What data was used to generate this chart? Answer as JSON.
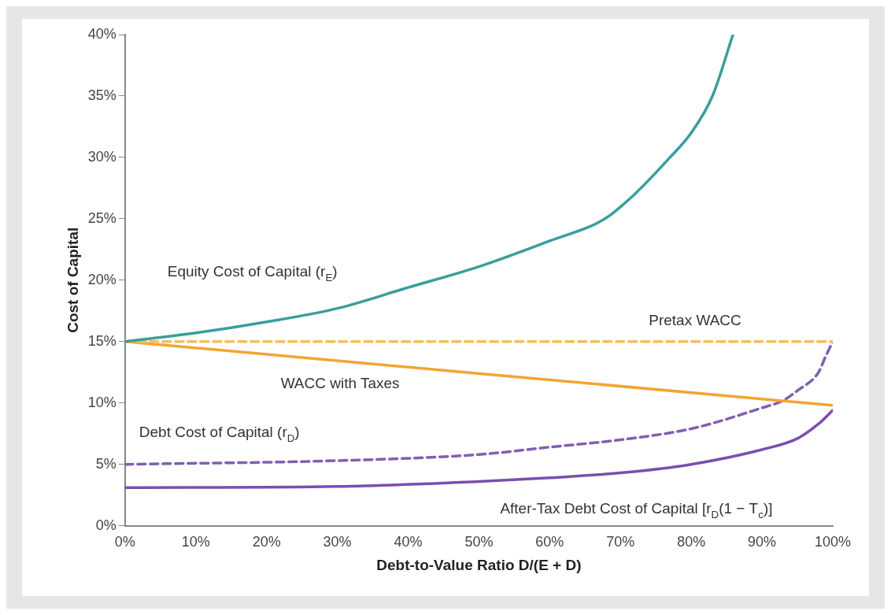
{
  "chart_data": {
    "type": "line",
    "xlabel": "Debt-to-Value Ratio D/(E + D)",
    "ylabel": "Cost of Capital",
    "xlim": [
      0,
      100
    ],
    "ylim": [
      0,
      40
    ],
    "xticks": [
      {
        "value": 0,
        "label": "0%"
      },
      {
        "value": 10,
        "label": "10%"
      },
      {
        "value": 20,
        "label": "20%"
      },
      {
        "value": 30,
        "label": "30%"
      },
      {
        "value": 40,
        "label": "40%"
      },
      {
        "value": 50,
        "label": "50%"
      },
      {
        "value": 60,
        "label": "60%"
      },
      {
        "value": 70,
        "label": "70%"
      },
      {
        "value": 80,
        "label": "80%"
      },
      {
        "value": 90,
        "label": "90%"
      },
      {
        "value": 100,
        "label": "100%"
      }
    ],
    "yticks": [
      {
        "value": 0,
        "label": "0%"
      },
      {
        "value": 5,
        "label": "5%"
      },
      {
        "value": 10,
        "label": "10%"
      },
      {
        "value": 15,
        "label": "15%"
      },
      {
        "value": 20,
        "label": "20%"
      },
      {
        "value": 25,
        "label": "25%"
      },
      {
        "value": 30,
        "label": "30%"
      },
      {
        "value": 35,
        "label": "35%"
      },
      {
        "value": 40,
        "label": "40%"
      }
    ],
    "grid": false,
    "legend": false,
    "marker": "none",
    "series": [
      {
        "name": "Equity Cost of Capital (r$_{E}$)",
        "color": "#3a9e9c",
        "line_style": "solid",
        "x": [
          0,
          10,
          20,
          30,
          40,
          50,
          60,
          67.8,
          72,
          77,
          80,
          83,
          85.9
        ],
        "values": [
          15,
          15.7,
          16.6,
          17.7,
          19.4,
          21.1,
          23.2,
          25,
          27,
          30,
          32,
          35,
          40
        ]
      },
      {
        "name": "Pretax WACC",
        "color": "#f5bd5c",
        "line_style": "dashed",
        "x": [
          0,
          100
        ],
        "values": [
          15,
          15
        ]
      },
      {
        "name": "WACC with Taxes",
        "color": "#f2a531",
        "line_style": "solid",
        "x": [
          0,
          100
        ],
        "values": [
          15,
          9.8
        ]
      },
      {
        "name": "Debt Cost of Capital (r$_{D}$)",
        "color": "#8060b0",
        "line_style": "dashed",
        "x": [
          0,
          30,
          50,
          60,
          70,
          80,
          90,
          93,
          95,
          98,
          99,
          100
        ],
        "values": [
          5,
          5.3,
          5.8,
          6.4,
          7,
          7.9,
          9.6,
          10.2,
          11,
          12.5,
          13.8,
          15
        ]
      },
      {
        "name": "After-Tax Debt Cost of Capital [r$_{D}$(1 − T$_{c}$)]",
        "color": "#7a4fb0",
        "line_style": "solid",
        "x": [
          0,
          30,
          50,
          60,
          70,
          80,
          90,
          95,
          98,
          100
        ],
        "values": [
          3.1,
          3.2,
          3.6,
          3.9,
          4.3,
          5,
          6.2,
          7.1,
          8.3,
          9.4
        ]
      }
    ]
  }
}
